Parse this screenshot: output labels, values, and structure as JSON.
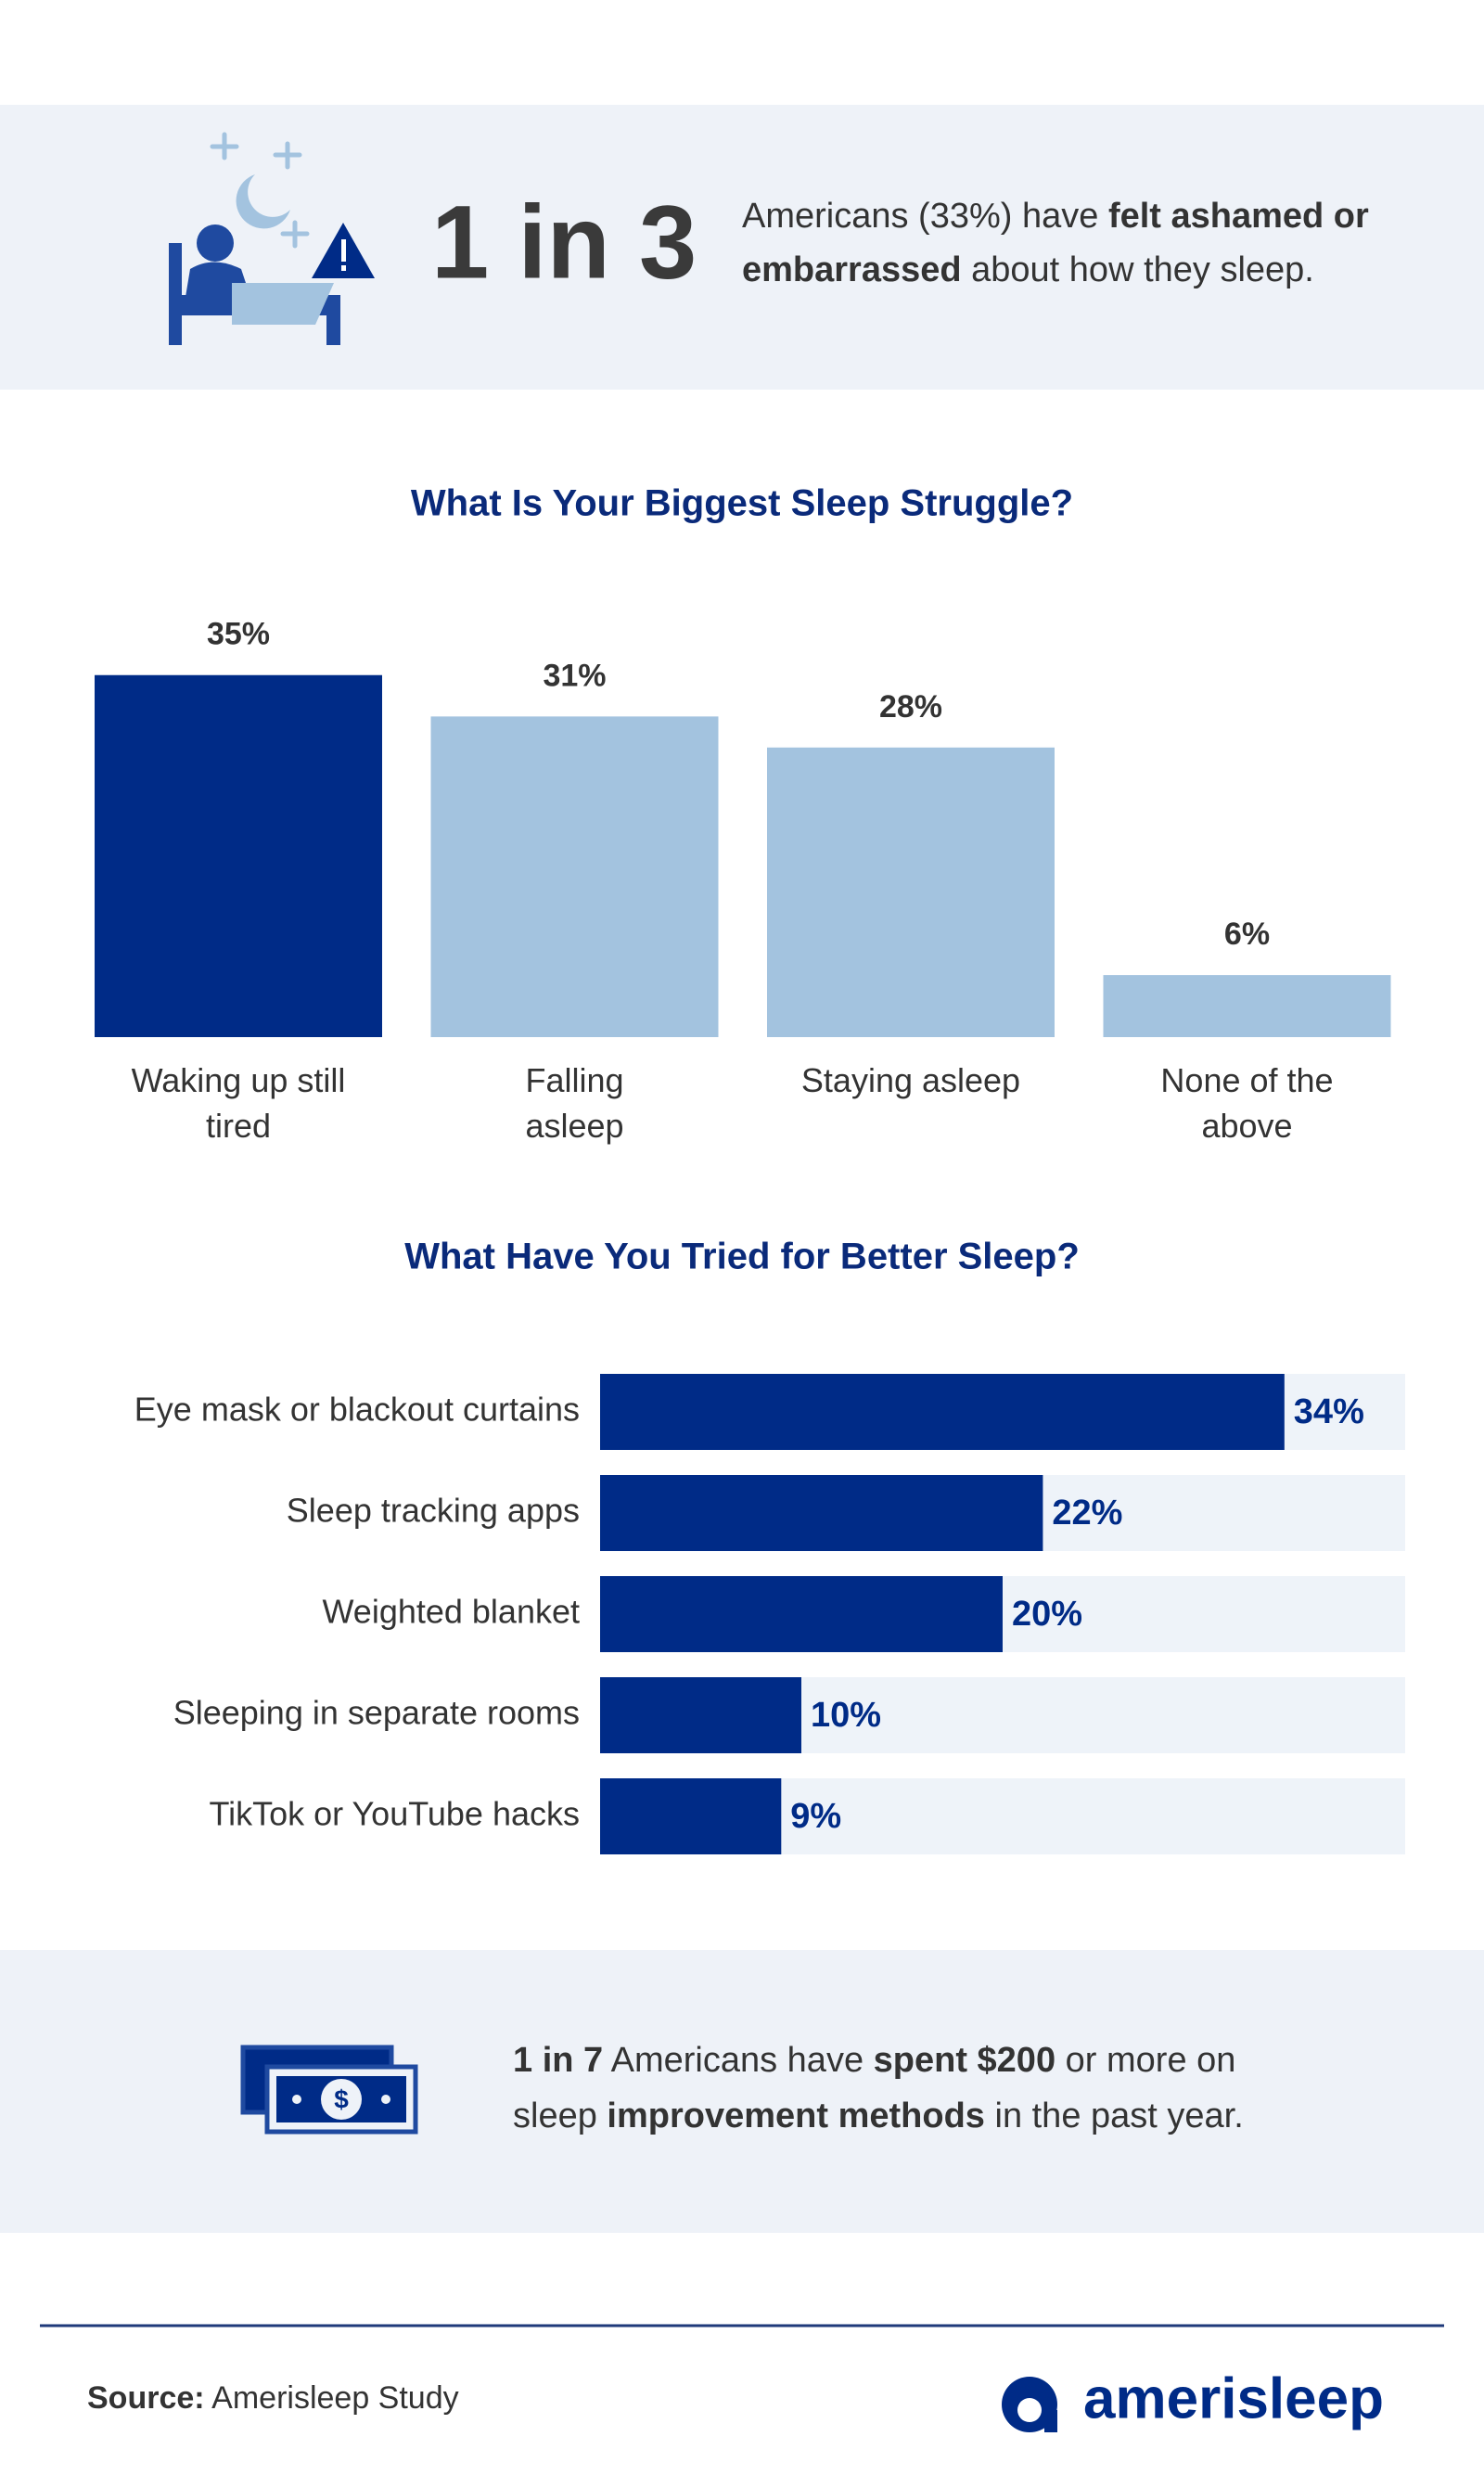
{
  "header": {
    "big": "1 in 3",
    "lines": [
      [
        {
          "text": "Americans (33%) have ",
          "bold": false
        },
        {
          "text": "felt ashamed or",
          "bold": true
        }
      ],
      [
        {
          "text": "embarrassed",
          "bold": true
        },
        {
          "text": " about how they sleep.",
          "bold": false
        }
      ]
    ]
  },
  "chart_data": [
    {
      "type": "bar",
      "title": "What Is Your Biggest Sleep Struggle?",
      "categories": [
        "Waking up still\ntired",
        "Falling\nasleep",
        "Staying asleep",
        "None of the\nabove"
      ],
      "values": [
        35,
        31,
        28,
        6
      ],
      "value_labels": [
        "35%",
        "31%",
        "28%",
        "6%"
      ],
      "colors": [
        "#002b87",
        "#a3c3df",
        "#a3c3df",
        "#a3c3df"
      ],
      "ylim": [
        0,
        40
      ]
    },
    {
      "type": "barh",
      "title": "What Have You Tried for Better Sleep?",
      "categories": [
        "Eye mask or blackout curtains",
        "Sleep tracking apps",
        "Weighted blanket",
        "Sleeping in separate rooms",
        "TikTok or YouTube hacks"
      ],
      "values": [
        34,
        22,
        20,
        10,
        9
      ],
      "value_labels": [
        "34%",
        "22%",
        "20%",
        "10%",
        "9%"
      ],
      "color": "#002b87",
      "track_color": "#eef3f9",
      "xlim": [
        0,
        40
      ]
    }
  ],
  "callout": {
    "lines": [
      [
        {
          "text": "1 in 7",
          "bold": true
        },
        {
          "text": " Americans have ",
          "bold": false
        },
        {
          "text": "spent $200",
          "bold": true
        },
        {
          "text": " or more on",
          "bold": false
        }
      ],
      [
        {
          "text": "sleep ",
          "bold": false
        },
        {
          "text": "improvement methods",
          "bold": true
        },
        {
          "text": " in the past year.",
          "bold": false
        }
      ]
    ]
  },
  "footer": {
    "source_label": "Source:",
    "source": " Amerisleep Study",
    "brand": "amerisleep"
  }
}
